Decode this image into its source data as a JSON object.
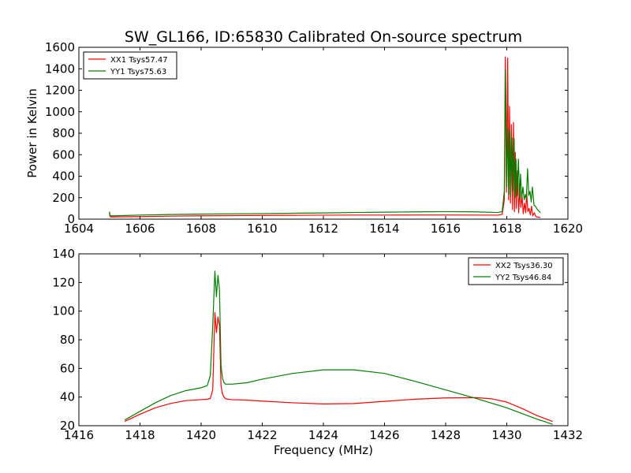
{
  "figure": {
    "title": "SW_GL166, ID:65830 Calibrated On-source spectrum",
    "ylabel": "Power in Kelvin",
    "xlabel": "Frequency (MHz)"
  },
  "chart_data": [
    {
      "type": "line",
      "title": "SW_GL166, ID:65830 Calibrated On-source spectrum",
      "xlabel": "",
      "ylabel": "Power in Kelvin",
      "xlim": [
        1604,
        1620
      ],
      "ylim": [
        0,
        1600
      ],
      "xticks": [
        1604,
        1606,
        1608,
        1610,
        1612,
        1614,
        1616,
        1618,
        1620
      ],
      "yticks": [
        0,
        200,
        400,
        600,
        800,
        1000,
        1200,
        1400,
        1600
      ],
      "grid": false,
      "legend_position": "top-left",
      "series": [
        {
          "name": "XX1 Tsys57.47",
          "color": "#ff0000",
          "x": [
            1605.0,
            1605.02,
            1605.05,
            1606,
            1607,
            1608,
            1609,
            1610,
            1611,
            1612,
            1613,
            1614,
            1615,
            1616,
            1617,
            1617.7,
            1617.85,
            1617.92,
            1617.95,
            1617.99,
            1618.03,
            1618.06,
            1618.09,
            1618.12,
            1618.15,
            1618.19,
            1618.22,
            1618.25,
            1618.28,
            1618.31,
            1618.35,
            1618.39,
            1618.43,
            1618.46,
            1618.5,
            1618.54,
            1618.58,
            1618.62,
            1618.65,
            1618.69,
            1618.73,
            1618.77,
            1618.81,
            1618.85,
            1618.9,
            1618.95,
            1619.0,
            1619.1
          ],
          "y": [
            60,
            25,
            20,
            24,
            28,
            31,
            33,
            35,
            36,
            37,
            38,
            38,
            39,
            39,
            38,
            37,
            45,
            180,
            1510,
            250,
            1500,
            180,
            1050,
            150,
            880,
            90,
            900,
            70,
            620,
            100,
            450,
            60,
            300,
            110,
            210,
            50,
            150,
            60,
            250,
            70,
            100,
            40,
            120,
            30,
            60,
            25,
            20,
            15
          ]
        },
        {
          "name": "YY1 Tsys75.63",
          "color": "#007f00",
          "x": [
            1605.0,
            1605.02,
            1605.05,
            1606,
            1607,
            1608,
            1609,
            1610,
            1611,
            1612,
            1613,
            1614,
            1615,
            1616,
            1617,
            1617.7,
            1617.85,
            1617.92,
            1617.96,
            1618.0,
            1618.04,
            1618.07,
            1618.1,
            1618.13,
            1618.17,
            1618.2,
            1618.24,
            1618.27,
            1618.3,
            1618.34,
            1618.38,
            1618.42,
            1618.45,
            1618.49,
            1618.53,
            1618.57,
            1618.61,
            1618.64,
            1618.68,
            1618.72,
            1618.76,
            1618.8,
            1618.84,
            1618.89,
            1618.94,
            1619.0,
            1619.1
          ],
          "y": [
            70,
            35,
            30,
            38,
            43,
            47,
            50,
            52,
            55,
            58,
            62,
            65,
            68,
            70,
            68,
            62,
            70,
            260,
            1390,
            300,
            850,
            230,
            820,
            210,
            760,
            260,
            750,
            200,
            560,
            220,
            560,
            190,
            420,
            200,
            300,
            180,
            230,
            190,
            470,
            220,
            260,
            160,
            300,
            130,
            120,
            90,
            60
          ]
        }
      ]
    },
    {
      "type": "line",
      "title": "",
      "xlabel": "Frequency (MHz)",
      "ylabel": "",
      "xlim": [
        1416,
        1432
      ],
      "ylim": [
        20,
        140
      ],
      "xticks": [
        1416,
        1418,
        1420,
        1422,
        1424,
        1426,
        1428,
        1430,
        1432
      ],
      "yticks": [
        20,
        40,
        60,
        80,
        100,
        120,
        140
      ],
      "grid": false,
      "legend_position": "top-right",
      "series": [
        {
          "name": "XX2 Tsys36.30",
          "color": "#ff0000",
          "x": [
            1417.5,
            1418,
            1418.5,
            1419,
            1419.5,
            1420,
            1420.2,
            1420.3,
            1420.38,
            1420.45,
            1420.5,
            1420.55,
            1420.6,
            1420.65,
            1420.7,
            1420.75,
            1420.8,
            1421,
            1421.5,
            1422,
            1423,
            1424,
            1425,
            1426,
            1427,
            1428,
            1429,
            1429.5,
            1430,
            1430.5,
            1431,
            1431.5
          ],
          "y": [
            23,
            28,
            32.5,
            35.5,
            37.5,
            38.2,
            38.5,
            39,
            45,
            99,
            85,
            96,
            90,
            48,
            42,
            40,
            38.8,
            38.2,
            37.8,
            37.2,
            36,
            35.2,
            35.5,
            37,
            38.5,
            39.4,
            39.6,
            38.8,
            36.5,
            32,
            27,
            23
          ]
        },
        {
          "name": "YY2 Tsys46.84",
          "color": "#007f00",
          "x": [
            1417.5,
            1418,
            1418.5,
            1419,
            1419.5,
            1420,
            1420.2,
            1420.3,
            1420.38,
            1420.45,
            1420.5,
            1420.55,
            1420.6,
            1420.65,
            1420.7,
            1420.75,
            1420.8,
            1421,
            1421.5,
            1422,
            1423,
            1424,
            1425,
            1426,
            1427,
            1428,
            1429,
            1430,
            1430.5,
            1431,
            1431.5
          ],
          "y": [
            24,
            30,
            36,
            41,
            44.5,
            46.5,
            48,
            55,
            90,
            128,
            110,
            125,
            115,
            62,
            53,
            50,
            49,
            49,
            50,
            52.5,
            56.5,
            59,
            59,
            56.5,
            51,
            45,
            39,
            32.5,
            28.5,
            24.5,
            21
          ]
        }
      ]
    }
  ]
}
